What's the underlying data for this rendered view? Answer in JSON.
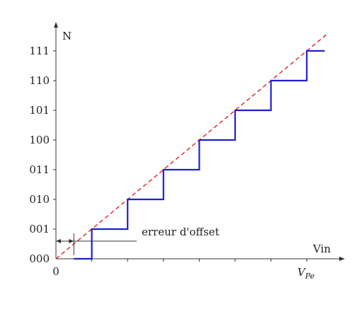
{
  "chart_data": {
    "type": "line",
    "xlabel": "Vin",
    "ylabel": "N",
    "x_origin_label": "0",
    "x_end_label": "V",
    "x_end_label_sub": "Pe",
    "y_categories": [
      "000",
      "001",
      "010",
      "011",
      "100",
      "101",
      "110",
      "111"
    ],
    "ylim": [
      0,
      7
    ],
    "xlim": [
      0,
      8
    ],
    "series": [
      {
        "kind": "staircase",
        "step_x": [
          0.5,
          1,
          2,
          3,
          4,
          5,
          6,
          7,
          7.5
        ],
        "levels": [
          0,
          1,
          2,
          3,
          4,
          5,
          6,
          7
        ]
      },
      {
        "kind": "ideal-line",
        "x": [
          0,
          7.6
        ],
        "y": [
          0,
          7.6
        ]
      }
    ],
    "offset_marker": {
      "x": 0.5
    },
    "annotation": "erreur d'offset",
    "colors": {
      "staircase": "#1f1fd0",
      "ideal": "#e02020",
      "axis": "#333333"
    }
  }
}
